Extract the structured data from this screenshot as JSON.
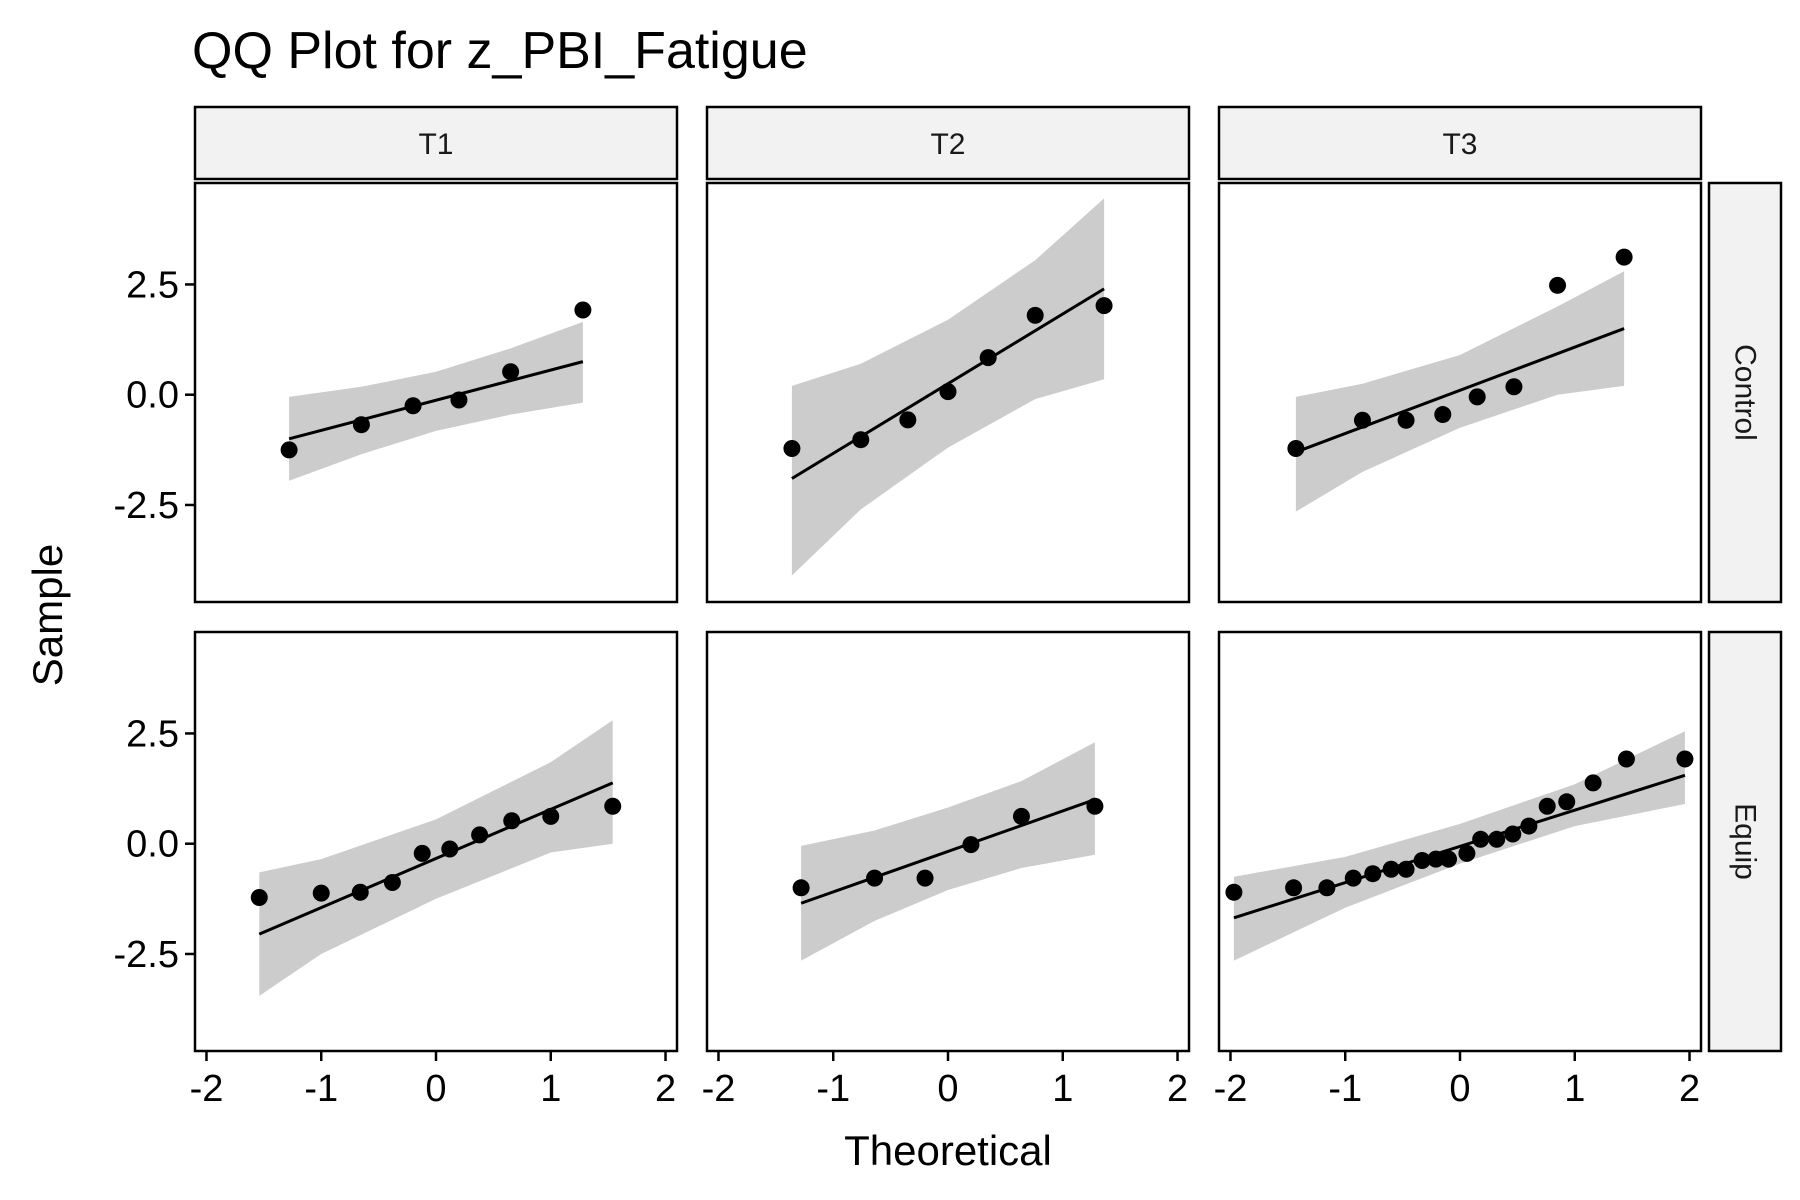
{
  "chart_data": {
    "type": "scatter",
    "title": "QQ Plot for z_PBI_Fatigue",
    "xlabel": "Theoretical",
    "ylabel": "Sample",
    "columns": [
      "T1",
      "T2",
      "T3"
    ],
    "rows": [
      "Control",
      "Equip"
    ],
    "xlim": [
      -2.1,
      2.1
    ],
    "ylim": [
      -4.7,
      4.8
    ],
    "xticks": [
      -2,
      -1,
      0,
      1,
      2
    ],
    "xtick_labels": [
      "-2",
      "-1",
      "0",
      "1",
      "2"
    ],
    "yticks": [
      -2.5,
      0,
      2.5
    ],
    "ytick_labels": [
      "-2.5",
      "0.0",
      "2.5"
    ],
    "grid": false,
    "panels": [
      {
        "row": "Control",
        "col": "T1",
        "points": [
          [
            -1.28,
            -1.25
          ],
          [
            -0.65,
            -0.68
          ],
          [
            -0.2,
            -0.25
          ],
          [
            0.2,
            -0.12
          ],
          [
            0.65,
            0.52
          ],
          [
            1.28,
            1.92
          ]
        ],
        "line": [
          [
            -1.28,
            -1.0
          ],
          [
            1.28,
            0.75
          ]
        ],
        "band": {
          "x": [
            -1.28,
            -0.65,
            0,
            0.65,
            1.28
          ],
          "lower": [
            -1.95,
            -1.35,
            -0.82,
            -0.45,
            -0.18
          ],
          "upper": [
            -0.05,
            0.18,
            0.52,
            1.05,
            1.65
          ]
        }
      },
      {
        "row": "Control",
        "col": "T2",
        "points": [
          [
            -1.36,
            -1.22
          ],
          [
            -0.76,
            -1.02
          ],
          [
            -0.35,
            -0.57
          ],
          [
            0.0,
            0.07
          ],
          [
            0.35,
            0.84
          ],
          [
            0.76,
            1.8
          ],
          [
            1.36,
            2.02
          ]
        ],
        "line": [
          [
            -1.36,
            -1.9
          ],
          [
            1.36,
            2.4
          ]
        ],
        "band": {
          "x": [
            -1.36,
            -0.76,
            0,
            0.76,
            1.36
          ],
          "lower": [
            -4.1,
            -2.6,
            -1.2,
            -0.1,
            0.35
          ],
          "upper": [
            0.2,
            0.7,
            1.7,
            3.05,
            4.45
          ]
        }
      },
      {
        "row": "Control",
        "col": "T3",
        "points": [
          [
            -1.43,
            -1.22
          ],
          [
            -0.85,
            -0.58
          ],
          [
            -0.47,
            -0.58
          ],
          [
            -0.15,
            -0.45
          ],
          [
            0.15,
            -0.05
          ],
          [
            0.47,
            0.18
          ],
          [
            0.85,
            2.48
          ],
          [
            1.43,
            3.12
          ]
        ],
        "line": [
          [
            -1.43,
            -1.3
          ],
          [
            1.43,
            1.5
          ]
        ],
        "band": {
          "x": [
            -1.43,
            -0.85,
            0,
            0.85,
            1.43
          ],
          "lower": [
            -2.65,
            -1.75,
            -0.75,
            0.0,
            0.2
          ],
          "upper": [
            -0.05,
            0.25,
            0.9,
            2.0,
            2.8
          ]
        }
      },
      {
        "row": "Equip",
        "col": "T1",
        "points": [
          [
            -1.54,
            -1.22
          ],
          [
            -1.0,
            -1.12
          ],
          [
            -0.66,
            -1.1
          ],
          [
            -0.38,
            -0.88
          ],
          [
            -0.12,
            -0.22
          ],
          [
            0.12,
            -0.12
          ],
          [
            0.38,
            0.2
          ],
          [
            0.66,
            0.52
          ],
          [
            1.0,
            0.62
          ],
          [
            1.54,
            0.85
          ]
        ],
        "line": [
          [
            -1.54,
            -2.05
          ],
          [
            1.54,
            1.38
          ]
        ],
        "band": {
          "x": [
            -1.54,
            -1.0,
            0,
            1.0,
            1.54
          ],
          "lower": [
            -3.45,
            -2.5,
            -1.25,
            -0.2,
            0.0
          ],
          "upper": [
            -0.65,
            -0.35,
            0.55,
            1.85,
            2.8
          ]
        }
      },
      {
        "row": "Equip",
        "col": "T2",
        "points": [
          [
            -1.28,
            -1.0
          ],
          [
            -0.64,
            -0.78
          ],
          [
            -0.2,
            -0.78
          ],
          [
            0.2,
            -0.02
          ],
          [
            0.64,
            0.62
          ],
          [
            1.28,
            0.85
          ]
        ],
        "line": [
          [
            -1.28,
            -1.35
          ],
          [
            1.28,
            1.0
          ]
        ],
        "band": {
          "x": [
            -1.28,
            -0.64,
            0,
            0.64,
            1.28
          ],
          "lower": [
            -2.65,
            -1.75,
            -1.05,
            -0.55,
            -0.25
          ],
          "upper": [
            -0.05,
            0.3,
            0.82,
            1.42,
            2.3
          ]
        }
      },
      {
        "row": "Equip",
        "col": "T3",
        "points": [
          [
            -1.97,
            -1.1
          ],
          [
            -1.45,
            -1.0
          ],
          [
            -1.16,
            -1.0
          ],
          [
            -0.93,
            -0.78
          ],
          [
            -0.76,
            -0.68
          ],
          [
            -0.6,
            -0.58
          ],
          [
            -0.47,
            -0.58
          ],
          [
            -0.33,
            -0.38
          ],
          [
            -0.21,
            -0.35
          ],
          [
            -0.1,
            -0.35
          ],
          [
            0.06,
            -0.22
          ],
          [
            0.18,
            0.1
          ],
          [
            0.32,
            0.1
          ],
          [
            0.46,
            0.22
          ],
          [
            0.6,
            0.4
          ],
          [
            0.76,
            0.85
          ],
          [
            0.93,
            0.95
          ],
          [
            1.16,
            1.38
          ],
          [
            1.45,
            1.92
          ],
          [
            1.96,
            1.92
          ]
        ],
        "line": [
          [
            -1.97,
            -1.68
          ],
          [
            1.96,
            1.55
          ]
        ],
        "band": {
          "x": [
            -1.97,
            -1.0,
            0,
            1.0,
            1.96
          ],
          "lower": [
            -2.65,
            -1.45,
            -0.45,
            0.4,
            0.9
          ],
          "upper": [
            -0.75,
            -0.3,
            0.45,
            1.35,
            2.55
          ]
        }
      }
    ]
  }
}
